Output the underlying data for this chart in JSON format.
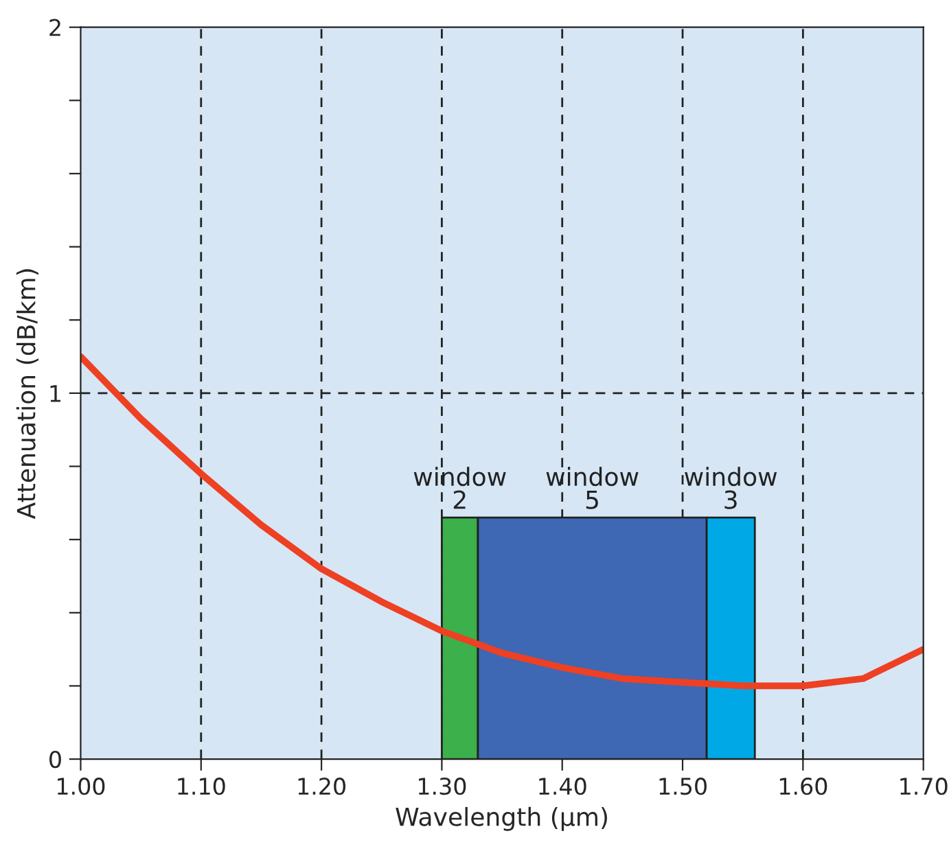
{
  "chart_data": {
    "type": "line",
    "xlabel": "Wavelength (μm)",
    "ylabel": "Attenuation (dB/km)",
    "x": [
      1.0,
      1.05,
      1.1,
      1.15,
      1.2,
      1.25,
      1.3,
      1.35,
      1.4,
      1.45,
      1.5,
      1.55,
      1.6,
      1.65,
      1.7
    ],
    "series": [
      {
        "color": "#ee4023",
        "values": [
          1.1,
          0.93,
          0.78,
          0.64,
          0.52,
          0.43,
          0.35,
          0.29,
          0.25,
          0.22,
          0.21,
          0.2,
          0.2,
          0.22,
          0.3
        ]
      }
    ],
    "xlim": [
      1.0,
      1.7
    ],
    "ylim": [
      0,
      2
    ],
    "xticks": [
      {
        "value": 1.0,
        "label": "1.00"
      },
      {
        "value": 1.1,
        "label": "1.10"
      },
      {
        "value": 1.2,
        "label": "1.20"
      },
      {
        "value": 1.3,
        "label": "1.30"
      },
      {
        "value": 1.4,
        "label": "1.40"
      },
      {
        "value": 1.5,
        "label": "1.50"
      },
      {
        "value": 1.6,
        "label": "1.60"
      },
      {
        "value": 1.7,
        "label": "1.70"
      }
    ],
    "yticks": [
      0,
      {
        "value": 0.2,
        "label": null
      },
      {
        "value": 0.4,
        "label": null
      },
      {
        "value": 0.6,
        "label": null
      },
      {
        "value": 0.8,
        "label": null
      },
      1,
      {
        "value": 1.2,
        "label": null
      },
      {
        "value": 1.4,
        "label": null
      },
      {
        "value": 1.6,
        "label": null
      },
      {
        "value": 1.8,
        "label": null
      },
      2
    ],
    "grid": "x",
    "line_style": "solid",
    "marker": "none",
    "legend": false,
    "ref_lines": [
      {
        "axis": "y",
        "value": 1,
        "label": null,
        "line_style": "dashed",
        "color": "#222222"
      }
    ],
    "bands": [
      {
        "axis": "x",
        "from": 1.3,
        "to": 1.33,
        "label": "window\n2",
        "color": "#3cb04a"
      },
      {
        "axis": "x",
        "from": 1.33,
        "to": 1.52,
        "label": "window\n5",
        "color": "#3e68b4"
      },
      {
        "axis": "x",
        "from": 1.52,
        "to": 1.56,
        "label": "window\n3",
        "color": "#00a9e6"
      }
    ]
  }
}
